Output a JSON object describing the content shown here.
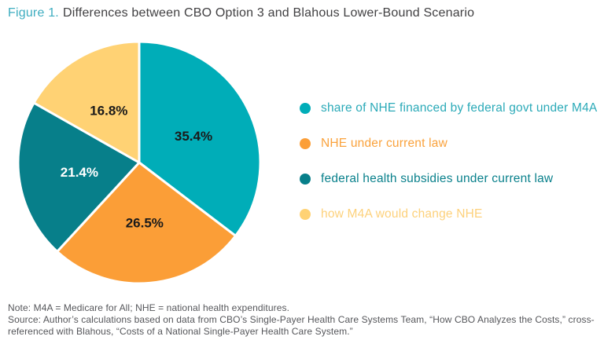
{
  "header": {
    "figure_label": "Figure 1.",
    "title": "Differences between CBO Option 3 and Blahous Lower-Bound Scenario"
  },
  "chart_data": {
    "type": "pie",
    "title": "Figure 1. Differences between CBO Option 3 and Blahous Lower-Bound Scenario",
    "start_angle_deg": 0,
    "direction": "clockwise",
    "legend_position": "right",
    "value_suffix": "%",
    "slice_separator_color": "#ffffff",
    "slices": [
      {
        "label": "share of NHE financed by federal govt under M4A",
        "value": 35.4,
        "color": "#00ADB8",
        "value_label": "35.4%",
        "value_label_color": "#1a1a1a",
        "legend_text_color": "#2BAAB8"
      },
      {
        "label": "NHE under current law",
        "value": 26.5,
        "color": "#FB9E37",
        "value_label": "26.5%",
        "value_label_color": "#1a1a1a",
        "legend_text_color": "#FAA23C"
      },
      {
        "label": "federal health subsidies under current law",
        "value": 21.4,
        "color": "#077F8A",
        "value_label": "21.4%",
        "value_label_color": "#ffffff",
        "legend_text_color": "#0A818C"
      },
      {
        "label": "how M4A would change NHE",
        "value": 16.8,
        "color": "#FFD274",
        "value_label": "16.8%",
        "value_label_color": "#1a1a1a",
        "legend_text_color": "#FDD17B"
      }
    ]
  },
  "footnotes": {
    "note": "Note: M4A = Medicare for All; NHE = national health expenditures.",
    "source_lines": [
      "Source: Author’s calculations based on data from CBO’s Single-Payer Health Care Systems Team, “How CBO Analyzes the Costs,” cross-",
      "referenced with Blahous, “Costs of a National Single-Payer Health Care System.”"
    ]
  },
  "colors": {
    "accent_teal": "#3EADC0",
    "title_text": "#414042",
    "footnote_text": "#55565A",
    "background": "#FFFFFF"
  }
}
